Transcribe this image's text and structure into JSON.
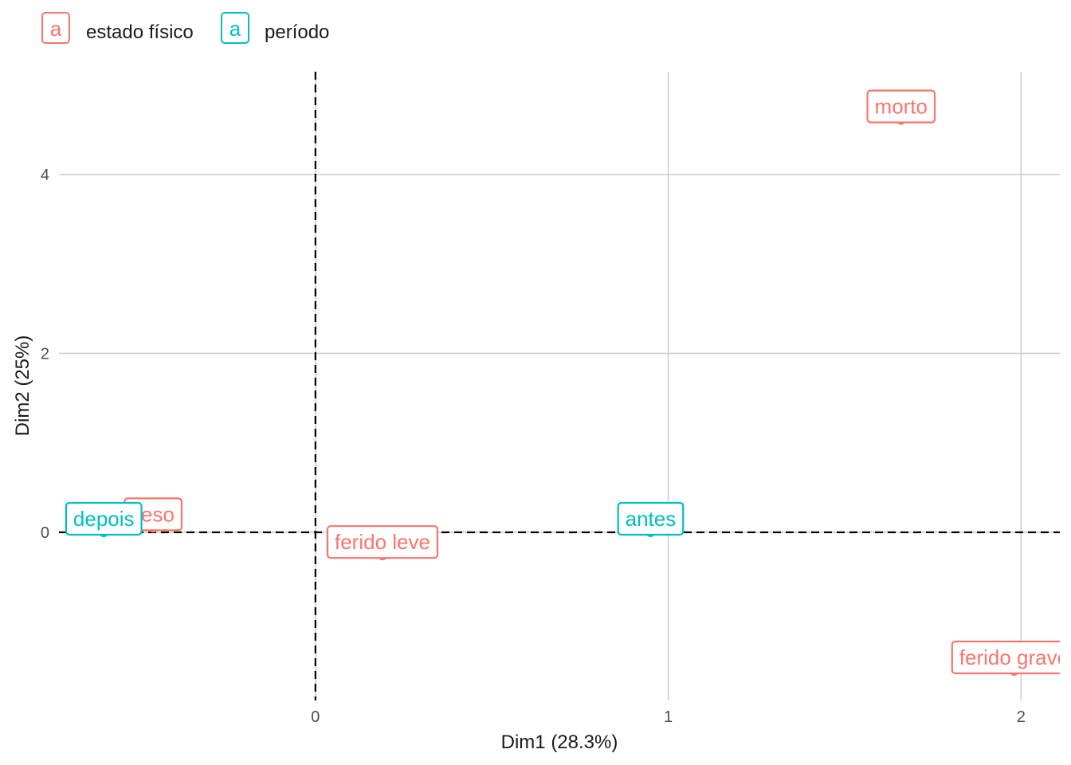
{
  "chart_data": {
    "type": "scatter",
    "xlabel": "Dim1 (28.3%)",
    "ylabel": "Dim2 (25%)",
    "xlim": [
      -0.727,
      2.11
    ],
    "ylim": [
      -1.88,
      5.15
    ],
    "x_ticks": [
      0,
      1,
      2
    ],
    "y_ticks": [
      0,
      2,
      4
    ],
    "grid": true,
    "reference_lines": {
      "x": 0,
      "y": 0,
      "style": "dashed"
    },
    "legend_position": "top-left",
    "legend_key_glyph": "a",
    "series": [
      {
        "name": "estado físico",
        "color": "#F8766D",
        "points": [
          {
            "label": "morto",
            "x": 1.66,
            "y": 4.61
          },
          {
            "label": "ileso",
            "x": -0.46,
            "y": 0.05
          },
          {
            "label": "ferido leve",
            "x": 0.19,
            "y": -0.26
          },
          {
            "label": "ferido grave",
            "x": 1.98,
            "y": -1.55
          }
        ]
      },
      {
        "name": "período",
        "color": "#00BFC4",
        "points": [
          {
            "label": "depois",
            "x": -0.6,
            "y": 0.0
          },
          {
            "label": "antes",
            "x": 0.95,
            "y": 0.0
          }
        ]
      }
    ]
  }
}
